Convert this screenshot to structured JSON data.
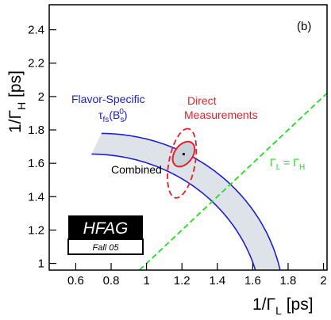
{
  "chart_data": {
    "type": "line",
    "panel_label": "(b)",
    "xlabel": "1/Γ",
    "xlabel_sub": "L",
    "xlabel_unit": " [ps]",
    "ylabel": "1/Γ",
    "ylabel_sub": "H",
    "ylabel_unit": " [ps]",
    "xlim": [
      0.45,
      2.02
    ],
    "ylim": [
      0.96,
      2.55
    ],
    "x_ticks": [
      "0.6",
      "0.8",
      "1",
      "1.2",
      "1.4",
      "1.6",
      "1.8",
      "2"
    ],
    "y_ticks": [
      "1",
      "1.2",
      "1.4",
      "1.6",
      "1.8",
      "2",
      "2.2",
      "2.4"
    ],
    "flavor_specific_band": {
      "label_line1": "Flavor-Specific",
      "label_tau": "τ",
      "label_tau_sub": "fs",
      "label_arg": "(B",
      "label_arg_sub": "s",
      "label_arg_sup": "0",
      "label_close": ")",
      "color": "#2020d0",
      "fill": "#dde3e8",
      "inner_tau_fs": 1.371,
      "outer_tau_fs": 1.474
    },
    "direct_measurements": {
      "label_line1": "Direct",
      "label_line2": "Measurements",
      "color": "#e8202a",
      "center": [
        1.2,
        1.6
      ],
      "semi_major": 0.21,
      "semi_minor": 0.074,
      "angle_deg": 80
    },
    "combined": {
      "label": "Combined",
      "color": "#e8202a",
      "fill": "#c8d2da",
      "center": [
        1.21,
        1.655
      ],
      "point": [
        1.21,
        1.655
      ],
      "semi_major": 0.082,
      "semi_minor": 0.052,
      "angle_deg": 58
    },
    "equal_line": {
      "label_gamma_l": "Γ",
      "label_sub_l": "L",
      "label_eq": " = Γ",
      "label_sub_h": "H",
      "color": "#22dd22",
      "x": [
        0.96,
        2.02
      ],
      "y": [
        0.96,
        2.02
      ]
    },
    "hfag_logo": {
      "title": "HFAG",
      "subtitle": "Fall 05"
    }
  }
}
